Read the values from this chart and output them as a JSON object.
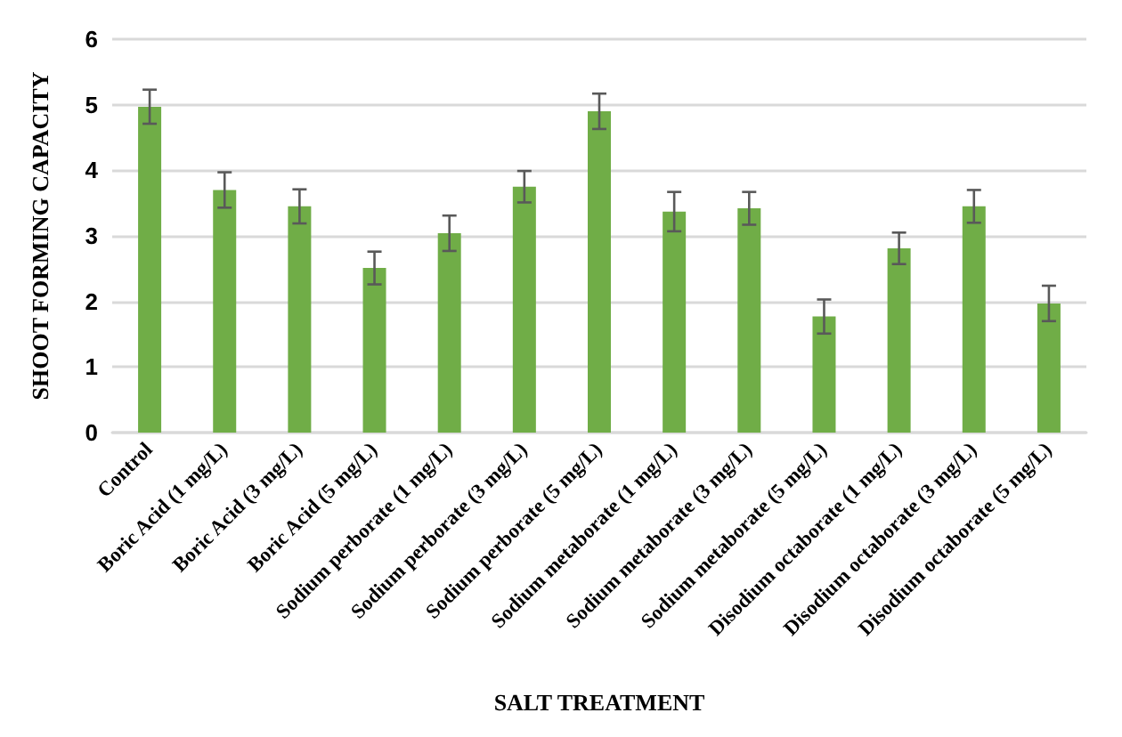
{
  "chart_data": {
    "type": "bar",
    "xlabel": "SALT TREATMENT",
    "ylabel": "SHOOT FORMING CAPACITY",
    "categories": [
      "Control",
      "Boric Acid (1 mg/L)",
      "Boric Acid (3 mg/L)",
      "Boric Acid (5 mg/L)",
      "Sodium perborate (1 mg/L)",
      "Sodium perborate (3 mg/L)",
      "Sodium perborate (5 mg/L)",
      "Sodium metaborate (1 mg/L)",
      "Sodium metaborate (3 mg/L)",
      "Sodium metaborate (5 mg/L)",
      "Disodium octaborate (1 mg/L)",
      "Disodium octaborate (3 mg/L)",
      "Disodium octaborate (5 mg/L)"
    ],
    "values": [
      4.97,
      3.7,
      3.45,
      2.51,
      3.04,
      3.75,
      4.9,
      3.37,
      3.42,
      1.77,
      2.81,
      3.45,
      1.97
    ],
    "errors": [
      0.26,
      0.27,
      0.26,
      0.25,
      0.27,
      0.24,
      0.27,
      0.3,
      0.25,
      0.26,
      0.24,
      0.25,
      0.27
    ],
    "color": "#70ad47",
    "ylim": [
      0,
      6
    ],
    "yticks": [
      0,
      1,
      2,
      3,
      4,
      5,
      6
    ],
    "grid": "y"
  }
}
